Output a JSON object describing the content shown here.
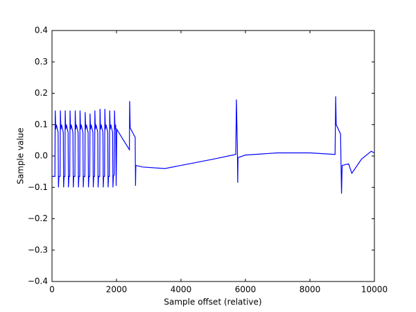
{
  "chart_data": {
    "type": "line",
    "xlabel": "Sample offset (relative)",
    "ylabel": "Sample value",
    "xlim": [
      0,
      10000
    ],
    "xticks": [
      0,
      2000,
      4000,
      6000,
      8000,
      10000
    ],
    "ylim": [
      -0.4,
      0.4
    ],
    "yticks": [
      {
        "value": -0.4,
        "label": "−0.4"
      },
      {
        "value": -0.3,
        "label": "−0.3"
      },
      {
        "value": -0.2,
        "label": "−0.2"
      },
      {
        "value": -0.1,
        "label": "−0.1"
      },
      {
        "value": 0,
        "label": "0.0"
      },
      0.1,
      0.2,
      0.3,
      0.4
    ],
    "grid": false,
    "series": [
      {
        "color": "#0000ff",
        "x": [
          0,
          90,
          100,
          115,
          135,
          190,
          200,
          215,
          250,
          260,
          275,
          295,
          350,
          360,
          375,
          400,
          410,
          425,
          445,
          500,
          510,
          525,
          550,
          560,
          575,
          595,
          650,
          660,
          675,
          710,
          720,
          735,
          755,
          810,
          820,
          835,
          860,
          870,
          885,
          905,
          960,
          970,
          985,
          1020,
          1030,
          1045,
          1065,
          1120,
          1130,
          1145,
          1170,
          1180,
          1195,
          1215,
          1270,
          1280,
          1295,
          1320,
          1330,
          1345,
          1365,
          1420,
          1430,
          1445,
          1480,
          1490,
          1505,
          1525,
          1580,
          1590,
          1605,
          1630,
          1640,
          1655,
          1675,
          1730,
          1740,
          1755,
          1780,
          1790,
          1805,
          1825,
          1880,
          1890,
          1905,
          1930,
          1940,
          1955,
          1975,
          1990,
          2010,
          2400,
          2410,
          2425,
          2550,
          2580,
          2590,
          2600,
          2800,
          3500,
          4000,
          5000,
          5700,
          5720,
          5735,
          5750,
          5760,
          5770,
          6000,
          7000,
          8000,
          8780,
          8800,
          8815,
          8950,
          8980,
          9000,
          9200,
          9300,
          9400,
          9600,
          9900,
          10000
        ],
        "values": [
          -0.065,
          -0.065,
          0.145,
          0.085,
          0.1,
          0.075,
          -0.1,
          -0.065,
          -0.065,
          0.145,
          0.085,
          0.1,
          0.075,
          -0.1,
          -0.065,
          -0.065,
          0.145,
          0.085,
          0.1,
          0.075,
          -0.1,
          -0.065,
          -0.065,
          0.145,
          0.085,
          0.1,
          0.075,
          -0.1,
          -0.065,
          -0.065,
          0.145,
          0.085,
          0.1,
          0.075,
          -0.1,
          -0.065,
          -0.065,
          0.145,
          0.085,
          0.1,
          0.075,
          -0.1,
          -0.065,
          -0.065,
          0.14,
          0.085,
          0.1,
          0.075,
          -0.1,
          -0.065,
          -0.065,
          0.135,
          0.085,
          0.1,
          0.075,
          -0.1,
          -0.065,
          -0.065,
          0.145,
          0.085,
          0.1,
          0.075,
          -0.1,
          -0.065,
          -0.065,
          0.15,
          0.085,
          0.1,
          0.075,
          -0.1,
          -0.065,
          -0.065,
          0.15,
          0.085,
          0.1,
          0.075,
          -0.1,
          -0.065,
          -0.065,
          0.145,
          0.085,
          0.1,
          0.075,
          -0.1,
          -0.065,
          -0.06,
          0.145,
          0.085,
          0.1,
          -0.095,
          0.085,
          0.02,
          0.175,
          0.09,
          0.065,
          0.06,
          -0.095,
          -0.03,
          -0.035,
          -0.04,
          -0.03,
          -0.01,
          0.005,
          0.18,
          0.1,
          0.03,
          -0.085,
          -0.005,
          0.003,
          0.01,
          0.01,
          0.005,
          0.19,
          0.1,
          0.07,
          -0.12,
          -0.03,
          -0.025,
          -0.055,
          -0.04,
          -0.01,
          0.015,
          0.01
        ]
      }
    ]
  }
}
